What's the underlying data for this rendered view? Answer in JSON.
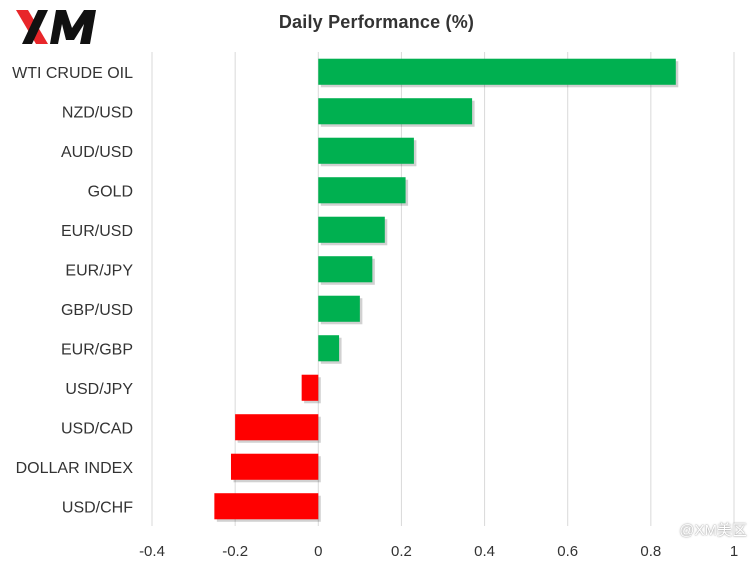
{
  "logo": {
    "text": "XM",
    "icon": "xm-logo"
  },
  "watermark": {
    "text": "@XM美区"
  },
  "colors": {
    "positive": "#00b050",
    "negative": "#ff0000",
    "grid": "#d9d9d9",
    "text": "#333333"
  },
  "chart_data": {
    "type": "bar",
    "orientation": "horizontal",
    "title": "Daily Performance  (%)",
    "categories": [
      "WTI CRUDE OIL",
      "NZD/USD",
      "AUD/USD",
      "GOLD",
      "EUR/USD",
      "EUR/JPY",
      "GBP/USD",
      "EUR/GBP",
      "USD/JPY",
      "USD/CAD",
      "DOLLAR INDEX",
      "USD/CHF"
    ],
    "values": [
      0.86,
      0.37,
      0.23,
      0.21,
      0.16,
      0.13,
      0.1,
      0.05,
      -0.04,
      -0.2,
      -0.21,
      -0.25
    ],
    "xlim": [
      -0.4,
      1
    ],
    "x_ticks": [
      -0.4,
      -0.2,
      0,
      0.2,
      0.4,
      0.6,
      0.8,
      1
    ],
    "x_tick_labels": [
      "-0.4",
      "-0.2",
      "0",
      "0.2",
      "0.4",
      "0.6",
      "0.8",
      "1"
    ],
    "xlabel": "",
    "ylabel": "",
    "grid": "vertical",
    "legend": "none"
  }
}
